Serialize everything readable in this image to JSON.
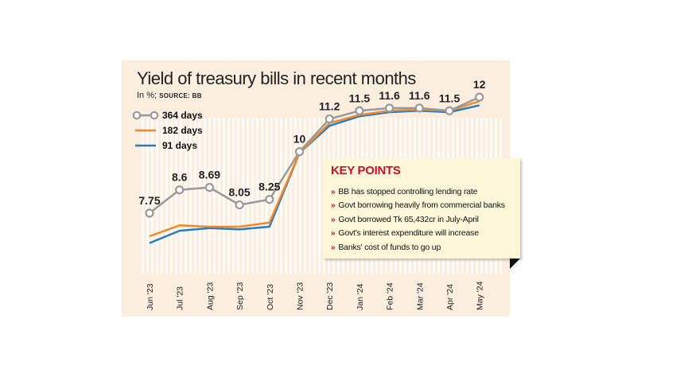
{
  "chart_data": {
    "type": "line",
    "title": "Yield of treasury bills in recent months",
    "subtitle_unit": "In %; ",
    "subtitle_source": "SOURCE: BB",
    "categories": [
      "Jun '23",
      "Jul '23",
      "Aug '23",
      "Sep '23",
      "Oct '23",
      "Nov '23",
      "Dec '23",
      "Jan '24",
      "Feb '24",
      "Mar '24",
      "Apr '24",
      "May '24"
    ],
    "series": [
      {
        "name": "364 days",
        "color": "#999999",
        "values": [
          7.75,
          8.6,
          8.69,
          8.05,
          8.25,
          10,
          11.2,
          11.5,
          11.6,
          11.6,
          11.5,
          12
        ],
        "labels": [
          "7.75",
          "8.6",
          "8.69",
          "8.05",
          "8.25",
          "10",
          "11.2",
          "11.5",
          "11.6",
          "11.6",
          "11.5",
          "12"
        ]
      },
      {
        "name": "182 days",
        "color": "#f08a2c",
        "values": [
          6.9,
          7.3,
          7.25,
          7.25,
          7.4,
          9.95,
          11.05,
          11.35,
          11.5,
          11.55,
          11.5,
          11.85
        ]
      },
      {
        "name": "91 days",
        "color": "#2b7bbf",
        "values": [
          6.65,
          7.1,
          7.2,
          7.15,
          7.25,
          9.95,
          10.95,
          11.3,
          11.45,
          11.5,
          11.45,
          11.7
        ]
      }
    ],
    "ylim": [
      5.5,
      12.5
    ],
    "legend_position": "top-left"
  },
  "key_points": {
    "title": "KEY POINTS",
    "items": [
      "BB has stopped controlling lending rate",
      "Govt borrowing heavily from commercial banks",
      "Govt borrowed Tk 65,432cr in July-April",
      "Govt's interest expenditure will increase",
      "Banks' cost of funds to go up"
    ]
  },
  "colors": {
    "background": "#fbeede",
    "stripe": "#ffffff",
    "accent": "#c8102e",
    "box": "#fdf6d8"
  }
}
